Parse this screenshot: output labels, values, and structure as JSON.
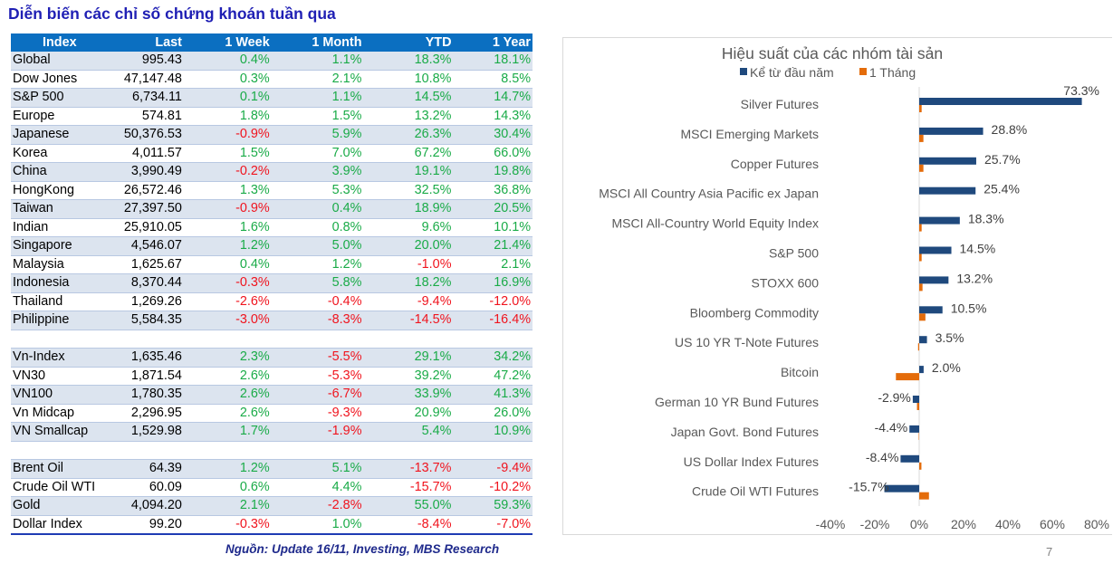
{
  "title": "Diễn biến các chỉ số chứng khoán tuần qua",
  "table": {
    "headers": [
      "Index",
      "Last",
      "1 Week",
      "1 Month",
      "YTD",
      "1 Year"
    ],
    "groups": [
      [
        {
          "name": "Global",
          "last": "995.43",
          "w": "0.4%",
          "m": "1.1%",
          "ytd": "18.3%",
          "y": "18.1%"
        },
        {
          "name": "Dow Jones",
          "last": "47,147.48",
          "w": "0.3%",
          "m": "2.1%",
          "ytd": "10.8%",
          "y": "8.5%"
        },
        {
          "name": "S&P 500",
          "last": "6,734.11",
          "w": "0.1%",
          "m": "1.1%",
          "ytd": "14.5%",
          "y": "14.7%"
        },
        {
          "name": "Europe",
          "last": "574.81",
          "w": "1.8%",
          "m": "1.5%",
          "ytd": "13.2%",
          "y": "14.3%"
        },
        {
          "name": "Japanese",
          "last": "50,376.53",
          "w": "-0.9%",
          "m": "5.9%",
          "ytd": "26.3%",
          "y": "30.4%"
        },
        {
          "name": "Korea",
          "last": "4,011.57",
          "w": "1.5%",
          "m": "7.0%",
          "ytd": "67.2%",
          "y": "66.0%"
        },
        {
          "name": "China",
          "last": "3,990.49",
          "w": "-0.2%",
          "m": "3.9%",
          "ytd": "19.1%",
          "y": "19.8%"
        },
        {
          "name": "HongKong",
          "last": "26,572.46",
          "w": "1.3%",
          "m": "5.3%",
          "ytd": "32.5%",
          "y": "36.8%"
        },
        {
          "name": "Taiwan",
          "last": "27,397.50",
          "w": "-0.9%",
          "m": "0.4%",
          "ytd": "18.9%",
          "y": "20.5%"
        },
        {
          "name": "Indian",
          "last": "25,910.05",
          "w": "1.6%",
          "m": "0.8%",
          "ytd": "9.6%",
          "y": "10.1%"
        },
        {
          "name": "Singapore",
          "last": "4,546.07",
          "w": "1.2%",
          "m": "5.0%",
          "ytd": "20.0%",
          "y": "21.4%"
        },
        {
          "name": "Malaysia",
          "last": "1,625.67",
          "w": "0.4%",
          "m": "1.2%",
          "ytd": "-1.0%",
          "y": "2.1%"
        },
        {
          "name": "Indonesia",
          "last": "8,370.44",
          "w": "-0.3%",
          "m": "5.8%",
          "ytd": "18.2%",
          "y": "16.9%"
        },
        {
          "name": "Thailand",
          "last": "1,269.26",
          "w": "-2.6%",
          "m": "-0.4%",
          "ytd": "-9.4%",
          "y": "-12.0%"
        },
        {
          "name": "Philippine",
          "last": "5,584.35",
          "w": "-3.0%",
          "m": "-8.3%",
          "ytd": "-14.5%",
          "y": "-16.4%"
        }
      ],
      [
        {
          "name": "Vn-Index",
          "last": "1,635.46",
          "w": "2.3%",
          "m": "-5.5%",
          "ytd": "29.1%",
          "y": "34.2%"
        },
        {
          "name": "VN30",
          "last": "1,871.54",
          "w": "2.6%",
          "m": "-5.3%",
          "ytd": "39.2%",
          "y": "47.2%"
        },
        {
          "name": "VN100",
          "last": "1,780.35",
          "w": "2.6%",
          "m": "-6.7%",
          "ytd": "33.9%",
          "y": "41.3%"
        },
        {
          "name": "Vn Midcap",
          "last": "2,296.95",
          "w": "2.6%",
          "m": "-9.3%",
          "ytd": "20.9%",
          "y": "26.0%"
        },
        {
          "name": "VN Smallcap",
          "last": "1,529.98",
          "w": "1.7%",
          "m": "-1.9%",
          "ytd": "5.4%",
          "y": "10.9%"
        }
      ],
      [
        {
          "name": "Brent Oil",
          "last": "64.39",
          "w": "1.2%",
          "m": "5.1%",
          "ytd": "-13.7%",
          "y": "-9.4%"
        },
        {
          "name": "Crude Oil WTI",
          "last": "60.09",
          "w": "0.6%",
          "m": "4.4%",
          "ytd": "-15.7%",
          "y": "-10.2%"
        },
        {
          "name": "Gold",
          "last": "4,094.20",
          "w": "2.1%",
          "m": "-2.8%",
          "ytd": "55.0%",
          "y": "59.3%"
        },
        {
          "name": "Dollar Index",
          "last": "99.20",
          "w": "-0.3%",
          "m": "1.0%",
          "ytd": "-8.4%",
          "y": "-7.0%"
        }
      ]
    ]
  },
  "source": "Nguồn: Update 16/11, Investing, MBS Research",
  "page_number": "7",
  "colors": {
    "header_bg": "#0b6fc1",
    "positive": "#1aab48",
    "negative": "#f0141e",
    "ytd_bar": "#1f497d",
    "month_bar": "#e46c0a"
  },
  "chart_data": {
    "type": "bar",
    "orientation": "horizontal",
    "title": "Hiệu suất của các nhóm tài sản",
    "legend": {
      "position": "top",
      "entries": [
        "Kể từ đầu năm",
        "1 Tháng"
      ]
    },
    "categories": [
      "Silver Futures",
      "MSCI Emerging Markets",
      "Copper Futures",
      "MSCI All Country Asia Pacific ex Japan",
      "MSCI All-Country World Equity Index",
      "S&P 500",
      "STOXX 600",
      "Bloomberg Commodity",
      "US 10 YR T-Note Futures",
      "Bitcoin",
      "German 10 YR Bund Futures",
      "Japan Govt. Bond Futures",
      "US Dollar Index Futures",
      "Crude Oil WTI Futures"
    ],
    "series": [
      {
        "name": "Kể từ đầu năm",
        "values": [
          73.3,
          28.8,
          25.7,
          25.4,
          18.3,
          14.5,
          13.2,
          10.5,
          3.5,
          2.0,
          -2.9,
          -4.4,
          -8.4,
          -15.7
        ],
        "labels": [
          "73.3%",
          "28.8%",
          "25.7%",
          "25.4%",
          "18.3%",
          "14.5%",
          "13.2%",
          "10.5%",
          "3.5%",
          "2.0%",
          "-2.9%",
          "-4.4%",
          "-8.4%",
          "-15.7%"
        ]
      },
      {
        "name": "1 Tháng",
        "values": [
          1.1,
          1.9,
          1.9,
          0.0,
          1.1,
          1.1,
          1.5,
          2.8,
          -0.5,
          -10.5,
          -1.0,
          -0.2,
          1.0,
          4.4
        ]
      }
    ],
    "xlim": [
      -40,
      80
    ],
    "xticks": [
      "-40%",
      "-20%",
      "0%",
      "20%",
      "40%",
      "60%",
      "80%"
    ],
    "xtick_values": [
      -40,
      -20,
      0,
      20,
      40,
      60,
      80
    ],
    "grid": false
  }
}
